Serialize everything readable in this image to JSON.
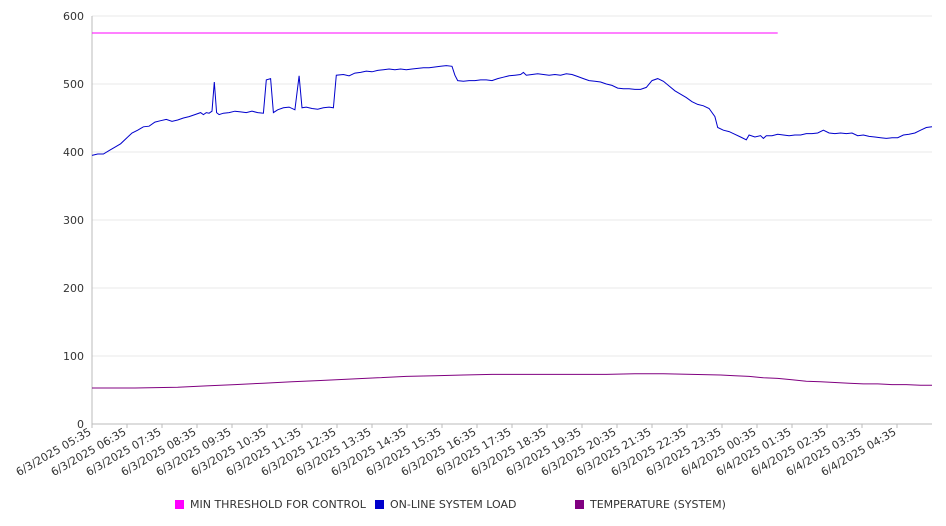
{
  "chart_data": {
    "type": "line",
    "ylim": [
      0,
      600
    ],
    "yticks": [
      0,
      100,
      200,
      300,
      400,
      500,
      600
    ],
    "grid": true,
    "legend_placement": "bottom",
    "x_tick_labels": [
      "6/3/2025 05:35",
      "6/3/2025 06:35",
      "6/3/2025 07:35",
      "6/3/2025 08:35",
      "6/3/2025 09:35",
      "6/3/2025 10:35",
      "6/3/2025 11:35",
      "6/3/2025 12:35",
      "6/3/2025 13:35",
      "6/3/2025 14:35",
      "6/3/2025 15:35",
      "6/3/2025 16:35",
      "6/3/2025 17:35",
      "6/3/2025 18:35",
      "6/3/2025 19:35",
      "6/3/2025 20:35",
      "6/3/2025 21:35",
      "6/3/2025 22:35",
      "6/3/2025 23:35",
      "6/4/2025 00:35",
      "6/4/2025 01:35",
      "6/4/2025 02:35",
      "6/4/2025 03:35",
      "6/4/2025 04:35"
    ],
    "x_range": [
      "6/3/2025 05:35",
      "6/4/2025 05:35"
    ],
    "series": [
      {
        "name": "MIN THRESHOLD FOR CONTROL",
        "color": "#ff00ff",
        "points": [
          [
            0,
            575
          ],
          [
            24,
            575
          ]
        ]
      },
      {
        "name": "ON-LINE SYSTEM LOAD",
        "color": "#0000cc",
        "points": [
          [
            0,
            395
          ],
          [
            0.2,
            397
          ],
          [
            0.4,
            397
          ],
          [
            0.6,
            402
          ],
          [
            0.8,
            407
          ],
          [
            1.0,
            412
          ],
          [
            1.2,
            420
          ],
          [
            1.4,
            428
          ],
          [
            1.6,
            432
          ],
          [
            1.8,
            437
          ],
          [
            2.0,
            438
          ],
          [
            2.2,
            444
          ],
          [
            2.4,
            446
          ],
          [
            2.6,
            448
          ],
          [
            2.8,
            445
          ],
          [
            3.0,
            447
          ],
          [
            3.2,
            450
          ],
          [
            3.4,
            452
          ],
          [
            3.6,
            455
          ],
          [
            3.8,
            458
          ],
          [
            3.9,
            455
          ],
          [
            4.0,
            458
          ],
          [
            4.1,
            457
          ],
          [
            4.2,
            460
          ],
          [
            4.28,
            503
          ],
          [
            4.36,
            458
          ],
          [
            4.45,
            455
          ],
          [
            4.6,
            457
          ],
          [
            4.8,
            458
          ],
          [
            5.0,
            460
          ],
          [
            5.2,
            459
          ],
          [
            5.4,
            458
          ],
          [
            5.6,
            460
          ],
          [
            5.8,
            458
          ],
          [
            6.0,
            457
          ],
          [
            6.1,
            506
          ],
          [
            6.25,
            508
          ],
          [
            6.35,
            458
          ],
          [
            6.5,
            462
          ],
          [
            6.7,
            465
          ],
          [
            6.9,
            466
          ],
          [
            7.1,
            462
          ],
          [
            7.25,
            512
          ],
          [
            7.35,
            465
          ],
          [
            7.5,
            466
          ],
          [
            7.7,
            464
          ],
          [
            7.9,
            463
          ],
          [
            8.1,
            465
          ],
          [
            8.3,
            466
          ],
          [
            8.45,
            465
          ],
          [
            8.55,
            513
          ],
          [
            8.8,
            514
          ],
          [
            9.0,
            512
          ],
          [
            9.2,
            516
          ],
          [
            9.4,
            517
          ],
          [
            9.6,
            519
          ],
          [
            9.8,
            518
          ],
          [
            10.0,
            520
          ],
          [
            10.2,
            521
          ],
          [
            10.4,
            522
          ],
          [
            10.6,
            521
          ],
          [
            10.8,
            522
          ],
          [
            11.0,
            521
          ],
          [
            11.2,
            522
          ],
          [
            11.4,
            523
          ],
          [
            11.6,
            524
          ],
          [
            11.8,
            524
          ],
          [
            12.0,
            525
          ],
          [
            12.2,
            526
          ],
          [
            12.4,
            527
          ],
          [
            12.6,
            526
          ],
          [
            12.7,
            513
          ],
          [
            12.8,
            505
          ],
          [
            13.0,
            504
          ],
          [
            13.2,
            505
          ],
          [
            13.4,
            505
          ],
          [
            13.6,
            506
          ],
          [
            13.8,
            506
          ],
          [
            14.0,
            505
          ],
          [
            14.2,
            508
          ],
          [
            14.4,
            510
          ],
          [
            14.6,
            512
          ],
          [
            14.8,
            513
          ],
          [
            15.0,
            514
          ],
          [
            15.1,
            517
          ],
          [
            15.2,
            513
          ],
          [
            15.4,
            514
          ],
          [
            15.6,
            515
          ],
          [
            15.8,
            514
          ],
          [
            16.0,
            513
          ],
          [
            16.2,
            514
          ],
          [
            16.4,
            513
          ],
          [
            16.6,
            515
          ],
          [
            16.8,
            514
          ],
          [
            17.0,
            511
          ],
          [
            17.2,
            508
          ],
          [
            17.4,
            505
          ],
          [
            17.6,
            504
          ],
          [
            17.8,
            503
          ],
          [
            18.0,
            500
          ],
          [
            18.2,
            498
          ],
          [
            18.4,
            494
          ],
          [
            18.6,
            493
          ],
          [
            18.8,
            493
          ],
          [
            19.0,
            492
          ],
          [
            19.2,
            492
          ],
          [
            19.4,
            495
          ],
          [
            19.6,
            505
          ],
          [
            19.8,
            508
          ],
          [
            20.0,
            504
          ],
          [
            20.2,
            497
          ],
          [
            20.4,
            490
          ],
          [
            20.6,
            485
          ],
          [
            20.8,
            480
          ],
          [
            21.0,
            474
          ],
          [
            21.2,
            470
          ],
          [
            21.4,
            468
          ],
          [
            21.6,
            464
          ],
          [
            21.8,
            452
          ],
          [
            21.9,
            436
          ],
          [
            22.1,
            432
          ],
          [
            22.3,
            430
          ],
          [
            22.5,
            426
          ],
          [
            22.7,
            422
          ],
          [
            22.9,
            418
          ],
          [
            23.0,
            425
          ],
          [
            23.2,
            422
          ],
          [
            23.4,
            424
          ],
          [
            23.5,
            420
          ],
          [
            23.6,
            424
          ],
          [
            23.8,
            424
          ],
          [
            24.0,
            426
          ],
          [
            24.2,
            425
          ],
          [
            24.4,
            424
          ],
          [
            24.6,
            425
          ],
          [
            24.8,
            425
          ],
          [
            25.0,
            427
          ],
          [
            25.2,
            427
          ],
          [
            25.4,
            428
          ],
          [
            25.6,
            432
          ],
          [
            25.8,
            428
          ],
          [
            26.0,
            427
          ],
          [
            26.2,
            428
          ],
          [
            26.4,
            427
          ],
          [
            26.6,
            428
          ],
          [
            26.8,
            424
          ],
          [
            27.0,
            425
          ],
          [
            27.2,
            423
          ],
          [
            27.4,
            422
          ],
          [
            27.6,
            421
          ],
          [
            27.8,
            420
          ],
          [
            28.0,
            421
          ],
          [
            28.2,
            421
          ],
          [
            28.4,
            425
          ],
          [
            28.6,
            426
          ],
          [
            28.8,
            428
          ],
          [
            29.0,
            432
          ],
          [
            29.2,
            436
          ],
          [
            29.4,
            437
          ]
        ]
      },
      {
        "name": "TEMPERATURE (SYSTEM)",
        "color": "#800080",
        "points": [
          [
            0,
            53
          ],
          [
            1.5,
            53
          ],
          [
            3,
            54
          ],
          [
            4,
            56
          ],
          [
            5,
            58
          ],
          [
            6,
            60
          ],
          [
            7,
            62
          ],
          [
            8,
            64
          ],
          [
            9,
            66
          ],
          [
            10,
            68
          ],
          [
            11,
            70
          ],
          [
            12,
            71
          ],
          [
            13,
            72
          ],
          [
            14,
            73
          ],
          [
            15,
            73
          ],
          [
            16,
            73
          ],
          [
            17,
            73
          ],
          [
            18,
            73
          ],
          [
            19,
            74
          ],
          [
            20,
            74
          ],
          [
            21,
            73
          ],
          [
            22,
            72
          ],
          [
            22.5,
            71
          ],
          [
            23,
            70
          ],
          [
            23.5,
            68
          ],
          [
            24,
            67
          ],
          [
            24.5,
            65
          ],
          [
            25,
            63
          ],
          [
            25.5,
            62
          ],
          [
            26,
            61
          ],
          [
            26.5,
            60
          ],
          [
            27,
            59
          ],
          [
            27.5,
            59
          ],
          [
            28,
            58
          ],
          [
            28.5,
            58
          ],
          [
            29,
            57
          ],
          [
            29.4,
            57
          ]
        ]
      }
    ]
  }
}
